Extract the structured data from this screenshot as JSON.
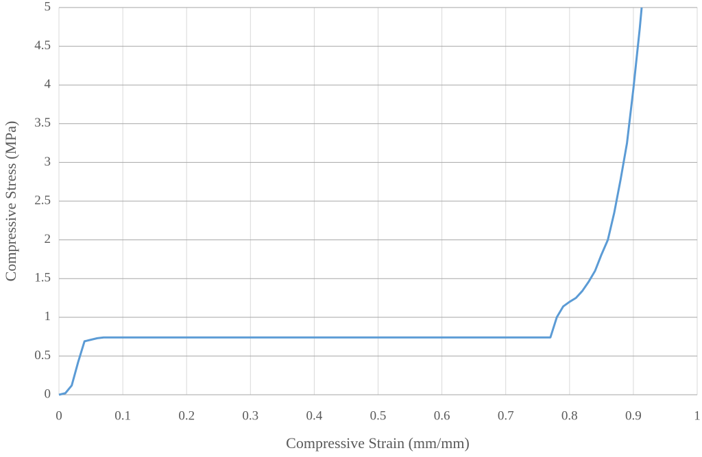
{
  "chart_data": {
    "type": "line",
    "x_label": "Compressive Strain (mm/mm)",
    "y_label": "Compressive Stress (MPa)",
    "x": [
      0,
      0.01,
      0.02,
      0.03,
      0.04,
      0.05,
      0.06,
      0.07,
      0.77,
      0.78,
      0.79,
      0.8,
      0.81,
      0.82,
      0.83,
      0.84,
      0.85,
      0.86,
      0.87,
      0.88,
      0.89,
      0.9,
      0.91,
      0.913
    ],
    "values": [
      0,
      0.02,
      0.12,
      0.42,
      0.69,
      0.71,
      0.73,
      0.74,
      0.74,
      1.0,
      1.14,
      1.2,
      1.25,
      1.34,
      1.46,
      1.6,
      1.81,
      2.0,
      2.35,
      2.78,
      3.25,
      3.95,
      4.73,
      5.0
    ],
    "color": "#5b9bd5",
    "xlim": [
      0,
      1
    ],
    "xticks": [
      0,
      0.1,
      0.2,
      0.3,
      0.4,
      0.5,
      0.6,
      0.7,
      0.8,
      0.9,
      1
    ],
    "ylim": [
      0,
      5
    ],
    "yticks": [
      0,
      0.5,
      1,
      1.5,
      2,
      2.5,
      3,
      3.5,
      4,
      4.5,
      5
    ],
    "grid": true
  }
}
